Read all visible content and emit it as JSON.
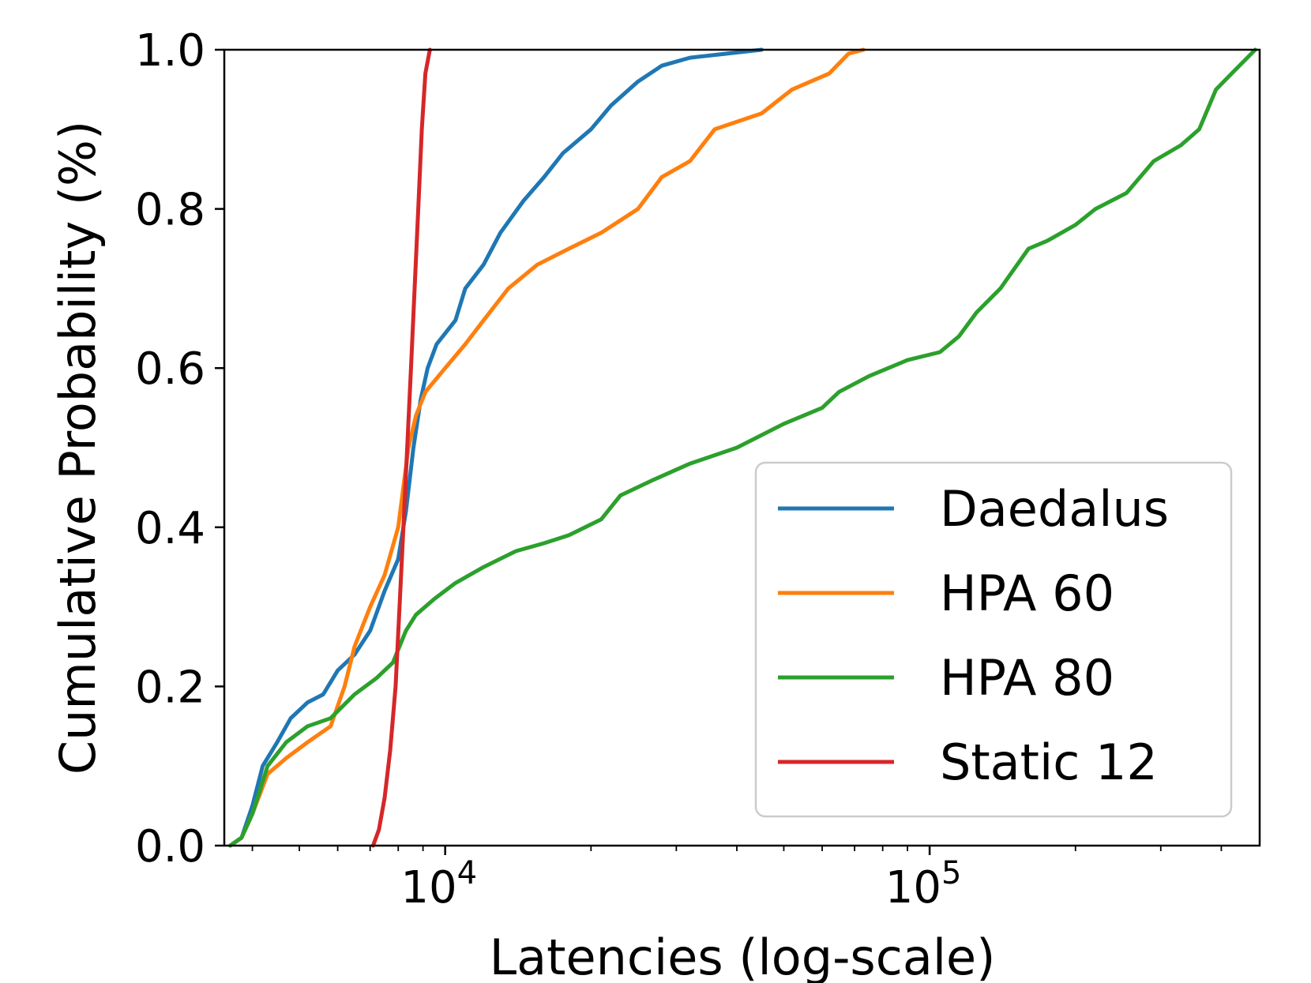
{
  "chart_data": {
    "type": "line",
    "title": "",
    "xlabel": "Latencies (log-scale)",
    "ylabel": "Cumulative Probability (%)",
    "xscale": "log",
    "xlim": [
      3500,
      480000
    ],
    "ylim": [
      0.0,
      1.0
    ],
    "grid": false,
    "legend_position": "lower-right",
    "x_major_ticks": [
      {
        "value": 10000,
        "base": "10",
        "exp": "4"
      },
      {
        "value": 100000,
        "base": "10",
        "exp": "5"
      }
    ],
    "y_ticks": [
      {
        "value": 0.0,
        "label": "0.0"
      },
      {
        "value": 0.2,
        "label": "0.2"
      },
      {
        "value": 0.4,
        "label": "0.4"
      },
      {
        "value": 0.6,
        "label": "0.6"
      },
      {
        "value": 0.8,
        "label": "0.8"
      },
      {
        "value": 1.0,
        "label": "1.0"
      }
    ],
    "series": [
      {
        "name": "Daedalus",
        "color": "#1f77b4",
        "points": [
          [
            3600,
            0.0
          ],
          [
            3800,
            0.01
          ],
          [
            4000,
            0.05
          ],
          [
            4200,
            0.1
          ],
          [
            4500,
            0.13
          ],
          [
            4800,
            0.16
          ],
          [
            5200,
            0.18
          ],
          [
            5600,
            0.19
          ],
          [
            6000,
            0.22
          ],
          [
            6500,
            0.24
          ],
          [
            7000,
            0.27
          ],
          [
            7500,
            0.32
          ],
          [
            8000,
            0.36
          ],
          [
            8300,
            0.42
          ],
          [
            8600,
            0.5
          ],
          [
            8900,
            0.56
          ],
          [
            9200,
            0.6
          ],
          [
            9600,
            0.63
          ],
          [
            10500,
            0.66
          ],
          [
            11000,
            0.7
          ],
          [
            12000,
            0.73
          ],
          [
            13000,
            0.77
          ],
          [
            14500,
            0.81
          ],
          [
            16000,
            0.84
          ],
          [
            17500,
            0.87
          ],
          [
            20000,
            0.9
          ],
          [
            22000,
            0.93
          ],
          [
            25000,
            0.96
          ],
          [
            28000,
            0.98
          ],
          [
            32000,
            0.99
          ],
          [
            38000,
            0.995
          ],
          [
            45000,
            1.0
          ]
        ]
      },
      {
        "name": "HPA 60",
        "color": "#ff7f0e",
        "points": [
          [
            3600,
            0.0
          ],
          [
            3800,
            0.01
          ],
          [
            4000,
            0.04
          ],
          [
            4300,
            0.09
          ],
          [
            4700,
            0.11
          ],
          [
            5200,
            0.13
          ],
          [
            5800,
            0.15
          ],
          [
            6200,
            0.2
          ],
          [
            6500,
            0.25
          ],
          [
            7000,
            0.3
          ],
          [
            7500,
            0.34
          ],
          [
            8000,
            0.4
          ],
          [
            8400,
            0.5
          ],
          [
            8700,
            0.54
          ],
          [
            9100,
            0.57
          ],
          [
            10000,
            0.6
          ],
          [
            11000,
            0.63
          ],
          [
            12000,
            0.66
          ],
          [
            13500,
            0.7
          ],
          [
            15500,
            0.73
          ],
          [
            18000,
            0.75
          ],
          [
            21000,
            0.77
          ],
          [
            25000,
            0.8
          ],
          [
            28000,
            0.84
          ],
          [
            32000,
            0.86
          ],
          [
            36000,
            0.9
          ],
          [
            45000,
            0.92
          ],
          [
            52000,
            0.95
          ],
          [
            62000,
            0.97
          ],
          [
            68000,
            0.995
          ],
          [
            73000,
            1.0
          ]
        ]
      },
      {
        "name": "HPA 80",
        "color": "#2ca02c",
        "points": [
          [
            3600,
            0.0
          ],
          [
            3800,
            0.01
          ],
          [
            4000,
            0.04
          ],
          [
            4300,
            0.1
          ],
          [
            4700,
            0.13
          ],
          [
            5200,
            0.15
          ],
          [
            5800,
            0.16
          ],
          [
            6500,
            0.19
          ],
          [
            7200,
            0.21
          ],
          [
            7800,
            0.23
          ],
          [
            8300,
            0.27
          ],
          [
            8700,
            0.29
          ],
          [
            9500,
            0.31
          ],
          [
            10500,
            0.33
          ],
          [
            12000,
            0.35
          ],
          [
            14000,
            0.37
          ],
          [
            16000,
            0.38
          ],
          [
            18000,
            0.39
          ],
          [
            21000,
            0.41
          ],
          [
            23000,
            0.44
          ],
          [
            27000,
            0.46
          ],
          [
            32000,
            0.48
          ],
          [
            40000,
            0.5
          ],
          [
            50000,
            0.53
          ],
          [
            60000,
            0.55
          ],
          [
            65000,
            0.57
          ],
          [
            75000,
            0.59
          ],
          [
            90000,
            0.61
          ],
          [
            105000,
            0.62
          ],
          [
            115000,
            0.64
          ],
          [
            125000,
            0.67
          ],
          [
            140000,
            0.7
          ],
          [
            160000,
            0.75
          ],
          [
            175000,
            0.76
          ],
          [
            200000,
            0.78
          ],
          [
            220000,
            0.8
          ],
          [
            255000,
            0.82
          ],
          [
            290000,
            0.86
          ],
          [
            330000,
            0.88
          ],
          [
            360000,
            0.9
          ],
          [
            390000,
            0.95
          ],
          [
            420000,
            0.97
          ],
          [
            470000,
            1.0
          ]
        ]
      },
      {
        "name": "Static 12",
        "color": "#d62728",
        "points": [
          [
            7100,
            0.0
          ],
          [
            7300,
            0.02
          ],
          [
            7500,
            0.06
          ],
          [
            7700,
            0.12
          ],
          [
            7900,
            0.2
          ],
          [
            8050,
            0.3
          ],
          [
            8200,
            0.4
          ],
          [
            8350,
            0.5
          ],
          [
            8500,
            0.6
          ],
          [
            8650,
            0.7
          ],
          [
            8800,
            0.8
          ],
          [
            8950,
            0.9
          ],
          [
            9100,
            0.97
          ],
          [
            9300,
            1.0
          ]
        ]
      }
    ]
  }
}
